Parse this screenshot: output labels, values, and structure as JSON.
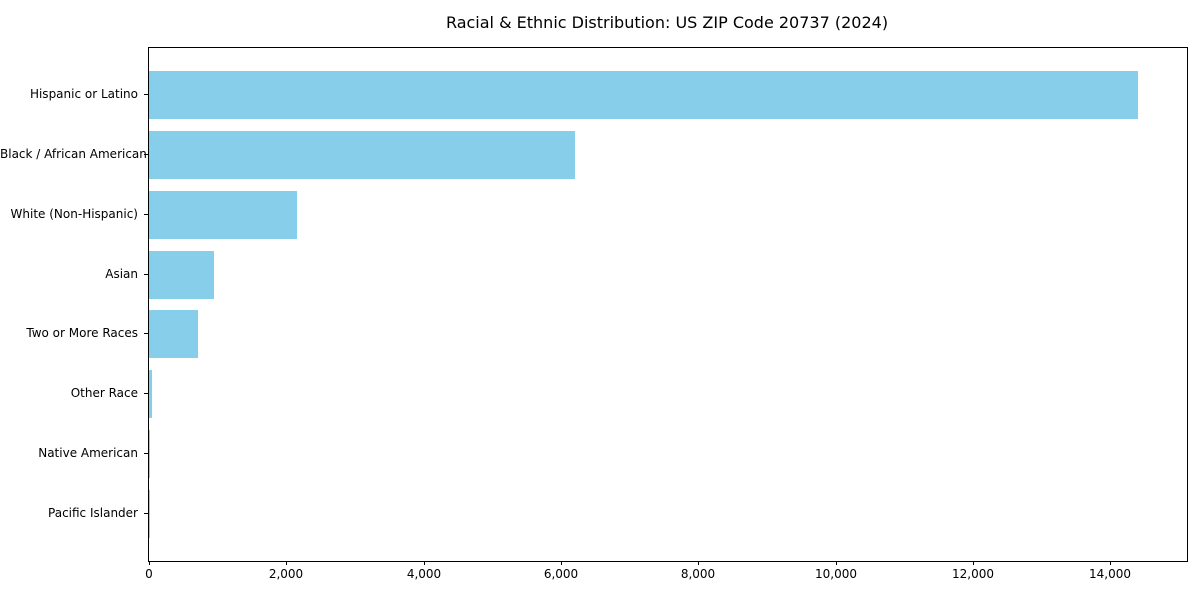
{
  "title": "Racial & Ethnic Distribution: US ZIP Code 20737 (2024)",
  "chart_data": {
    "type": "bar",
    "orientation": "horizontal",
    "title": "Racial & Ethnic Distribution: US ZIP Code 20737 (2024)",
    "categories": [
      "Hispanic or Latino",
      "Black / African American",
      "White (Non-Hispanic)",
      "Asian",
      "Two or More Races",
      "Other Race",
      "Native American",
      "Pacific Islander"
    ],
    "values": [
      14400,
      6200,
      2150,
      950,
      715,
      45,
      15,
      5
    ],
    "xlabel": "",
    "ylabel": "",
    "xlim": [
      0,
      15120
    ],
    "xticks": [
      0,
      2000,
      4000,
      6000,
      8000,
      10000,
      12000,
      14000
    ],
    "xtick_labels": [
      "0",
      "2,000",
      "4,000",
      "6,000",
      "8,000",
      "10,000",
      "12,000",
      "14,000"
    ],
    "bar_color": "#87CEEB",
    "grid": false,
    "legend": false,
    "background_color": "#ffffff"
  }
}
